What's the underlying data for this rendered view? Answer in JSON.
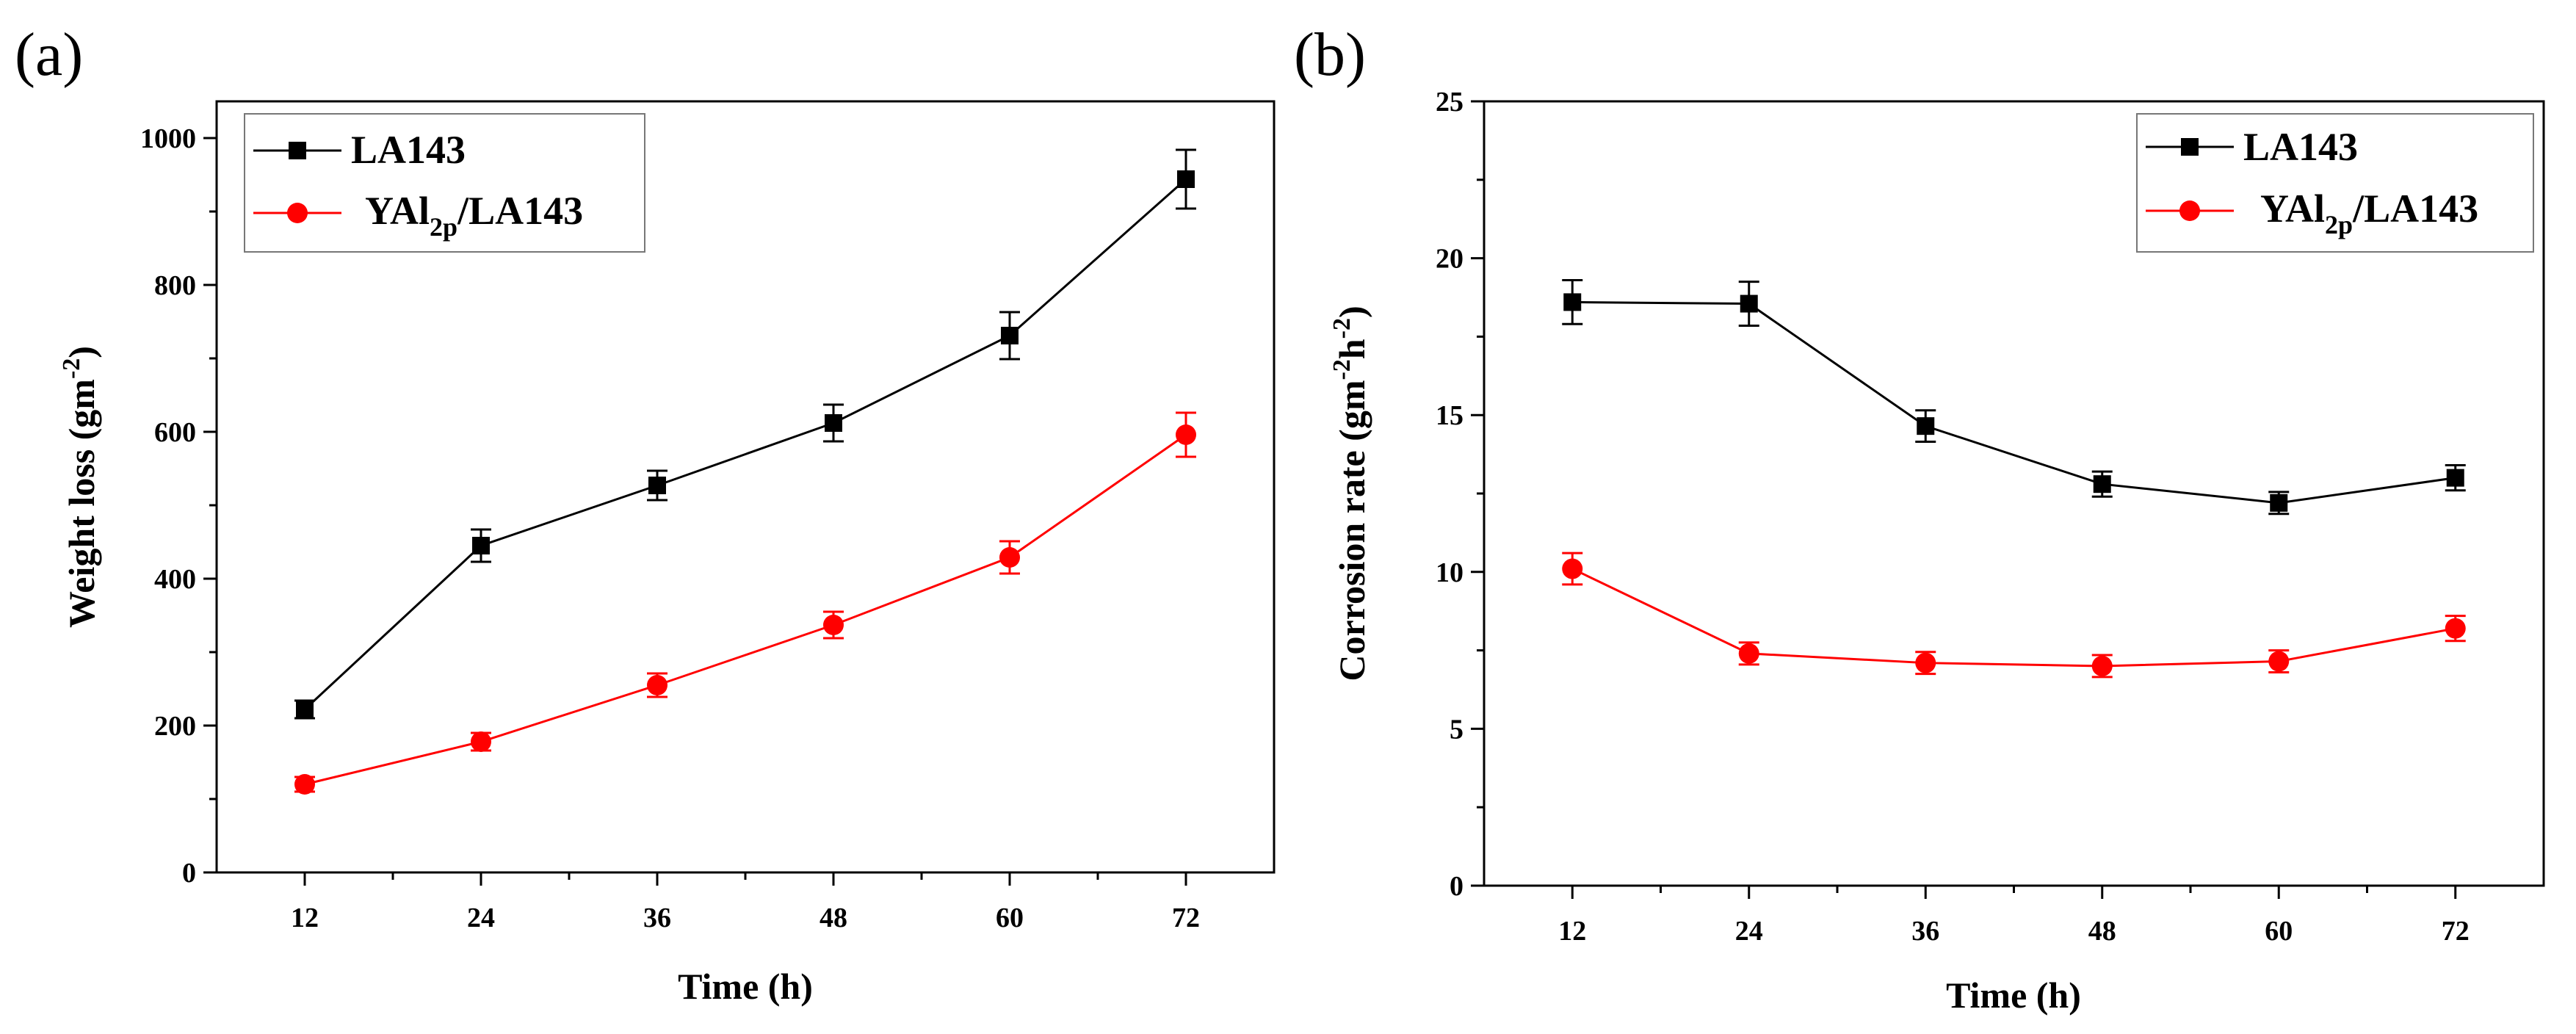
{
  "chart_data": [
    {
      "id": "a",
      "type": "line",
      "panel_label": "(a)",
      "xlabel": "Time (h)",
      "ylabel": "Weight loss (gm",
      "ylabel_sup": "-2",
      "ylabel_close": ")",
      "x": [
        12,
        24,
        36,
        48,
        60,
        72
      ],
      "x_tick_labels": [
        "12",
        "24",
        "36",
        "48",
        "60",
        "72"
      ],
      "xlim": [
        6,
        78
      ],
      "ylim": [
        0,
        1050
      ],
      "y_ticks": [
        0,
        200,
        400,
        600,
        800,
        1000
      ],
      "y_tick_labels": [
        "0",
        "200",
        "400",
        "600",
        "800",
        "1000"
      ],
      "legend_position": "top-left",
      "series": [
        {
          "name": "LA143",
          "legend_main": "LA143",
          "legend_sub": "",
          "legend_tail": "",
          "color": "#000000",
          "marker": "square",
          "values": [
            222,
            445,
            527,
            612,
            731,
            944
          ],
          "errors": [
            12,
            22,
            20,
            25,
            32,
            40
          ]
        },
        {
          "name": "YAl2p/LA143",
          "legend_main": "YAl",
          "legend_sub": "2p",
          "legend_tail": "/LA143",
          "color": "#ff0000",
          "marker": "circle",
          "values": [
            120,
            178,
            255,
            337,
            429,
            596
          ],
          "errors": [
            10,
            12,
            16,
            18,
            22,
            30
          ]
        }
      ]
    },
    {
      "id": "b",
      "type": "line",
      "panel_label": "(b)",
      "xlabel": "Time (h)",
      "ylabel": "Corrosion rate (gm",
      "ylabel_sup1": "-2",
      "ylabel_mid": "h",
      "ylabel_sup2": "-2",
      "ylabel_close": ")",
      "x": [
        12,
        24,
        36,
        48,
        60,
        72
      ],
      "x_tick_labels": [
        "12",
        "24",
        "36",
        "48",
        "60",
        "72"
      ],
      "xlim": [
        6,
        78
      ],
      "ylim": [
        0,
        25
      ],
      "y_ticks": [
        0,
        5,
        10,
        15,
        20,
        25
      ],
      "y_tick_labels": [
        "0",
        "5",
        "10",
        "15",
        "20",
        "25"
      ],
      "legend_position": "top-right",
      "series": [
        {
          "name": "LA143",
          "legend_main": "LA143",
          "legend_sub": "",
          "legend_tail": "",
          "color": "#000000",
          "marker": "square",
          "values": [
            18.6,
            18.55,
            14.65,
            12.8,
            12.2,
            13.0
          ],
          "errors": [
            0.7,
            0.7,
            0.5,
            0.4,
            0.35,
            0.4
          ]
        },
        {
          "name": "YAl2p/LA143",
          "legend_main": "YAl",
          "legend_sub": "2p",
          "legend_tail": "/LA143",
          "color": "#ff0000",
          "marker": "circle",
          "values": [
            10.1,
            7.4,
            7.1,
            7.0,
            7.15,
            8.2
          ],
          "errors": [
            0.5,
            0.35,
            0.35,
            0.35,
            0.35,
            0.4
          ]
        }
      ]
    }
  ]
}
